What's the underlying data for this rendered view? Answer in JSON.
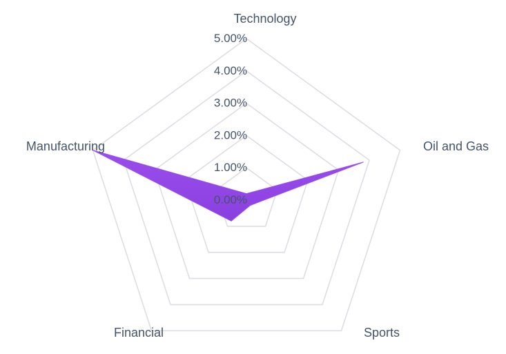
{
  "chart_data": {
    "type": "radar",
    "categories": [
      "Technology",
      "Oil and Gas",
      "Sports",
      "Financial",
      "Manufacturing"
    ],
    "series": [
      {
        "values": [
          0.2,
          3.8,
          0.2,
          0.8,
          5.0
        ],
        "color": "#9a4fec"
      }
    ],
    "r_ticks": [
      "0.00%",
      "1.00%",
      "2.00%",
      "3.00%",
      "4.00%",
      "5.00%"
    ],
    "r_range": [
      0,
      5
    ],
    "unit": "%",
    "grid": true,
    "legend": "none",
    "colors": {
      "grid": "#dedde4",
      "text": "#44546a",
      "fill_top": "#9a4fec",
      "fill_bottom": "#8a3fe0"
    }
  }
}
